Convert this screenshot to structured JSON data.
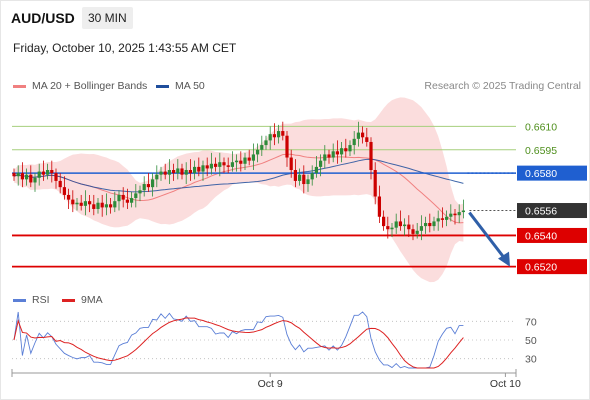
{
  "header": {
    "symbol": "AUD/USD",
    "timeframe": "30 MIN",
    "datetime": "Friday, October 10, 2025 1:43:55 AM CET"
  },
  "legend": {
    "ma20_label": "MA 20 + Bollinger Bands",
    "ma50_label": "MA 50",
    "rsi_label": "RSI",
    "ma9_label": "9MA"
  },
  "copyright": "Research © 2025 Trading Central",
  "colors": {
    "up": "#2e8b3a",
    "down": "#cc0000",
    "bollinger": "#f9c7c7",
    "ma20": "#f08080",
    "ma50": "#1f4e9c",
    "rsi": "#5b7fd6",
    "ma9": "#dd2222",
    "forecast_arrow": "#2f5fa8"
  },
  "chart_data": {
    "type": "candlestick",
    "ylim": [
      0.6505,
      0.6625
    ],
    "current_price": 0.6556,
    "levels": [
      {
        "value": 0.661,
        "label": "0.6610",
        "kind": "resistance"
      },
      {
        "value": 0.6595,
        "label": "0.6595",
        "kind": "resistance"
      },
      {
        "value": 0.658,
        "label": "0.6580",
        "kind": "pivot"
      },
      {
        "value": 0.6556,
        "label": "0.6556",
        "kind": "current"
      },
      {
        "value": 0.654,
        "label": "0.6540",
        "kind": "support"
      },
      {
        "value": 0.652,
        "label": "0.6520",
        "kind": "support"
      }
    ],
    "x_labels": [
      {
        "label": "Oct 9",
        "index": 61
      },
      {
        "label": "Oct 10",
        "index": 117
      }
    ],
    "close": [
      0.6578,
      0.658,
      0.6576,
      0.6579,
      0.6574,
      0.6577,
      0.6581,
      0.6579,
      0.6582,
      0.658,
      0.6575,
      0.6571,
      0.6566,
      0.6563,
      0.656,
      0.6561,
      0.6559,
      0.6562,
      0.656,
      0.6557,
      0.6561,
      0.6558,
      0.656,
      0.6558,
      0.6562,
      0.6566,
      0.6563,
      0.6561,
      0.6564,
      0.6567,
      0.6569,
      0.6573,
      0.6571,
      0.6576,
      0.6579,
      0.6581,
      0.6579,
      0.6582,
      0.658,
      0.6583,
      0.6579,
      0.6582,
      0.658,
      0.6584,
      0.6581,
      0.6585,
      0.6583,
      0.6586,
      0.6584,
      0.6587,
      0.6585,
      0.6584,
      0.6587,
      0.6588,
      0.6586,
      0.659,
      0.6588,
      0.6592,
      0.6595,
      0.6598,
      0.6601,
      0.6605,
      0.6603,
      0.6607,
      0.6604,
      0.659,
      0.6582,
      0.6575,
      0.6579,
      0.6573,
      0.6576,
      0.658,
      0.6584,
      0.6588,
      0.6592,
      0.659,
      0.6594,
      0.6592,
      0.6596,
      0.6594,
      0.6598,
      0.6602,
      0.6606,
      0.6603,
      0.66,
      0.6582,
      0.6565,
      0.6552,
      0.6546,
      0.6544,
      0.6545,
      0.6549,
      0.6546,
      0.6547,
      0.6544,
      0.6541,
      0.6543,
      0.6546,
      0.6548,
      0.6546,
      0.6549,
      0.6551,
      0.655,
      0.6552,
      0.6554,
      0.6553,
      0.6555,
      0.6556
    ],
    "rsi_ticks": [
      70,
      50,
      30
    ],
    "rsi_ylim": [
      20,
      80
    ]
  }
}
